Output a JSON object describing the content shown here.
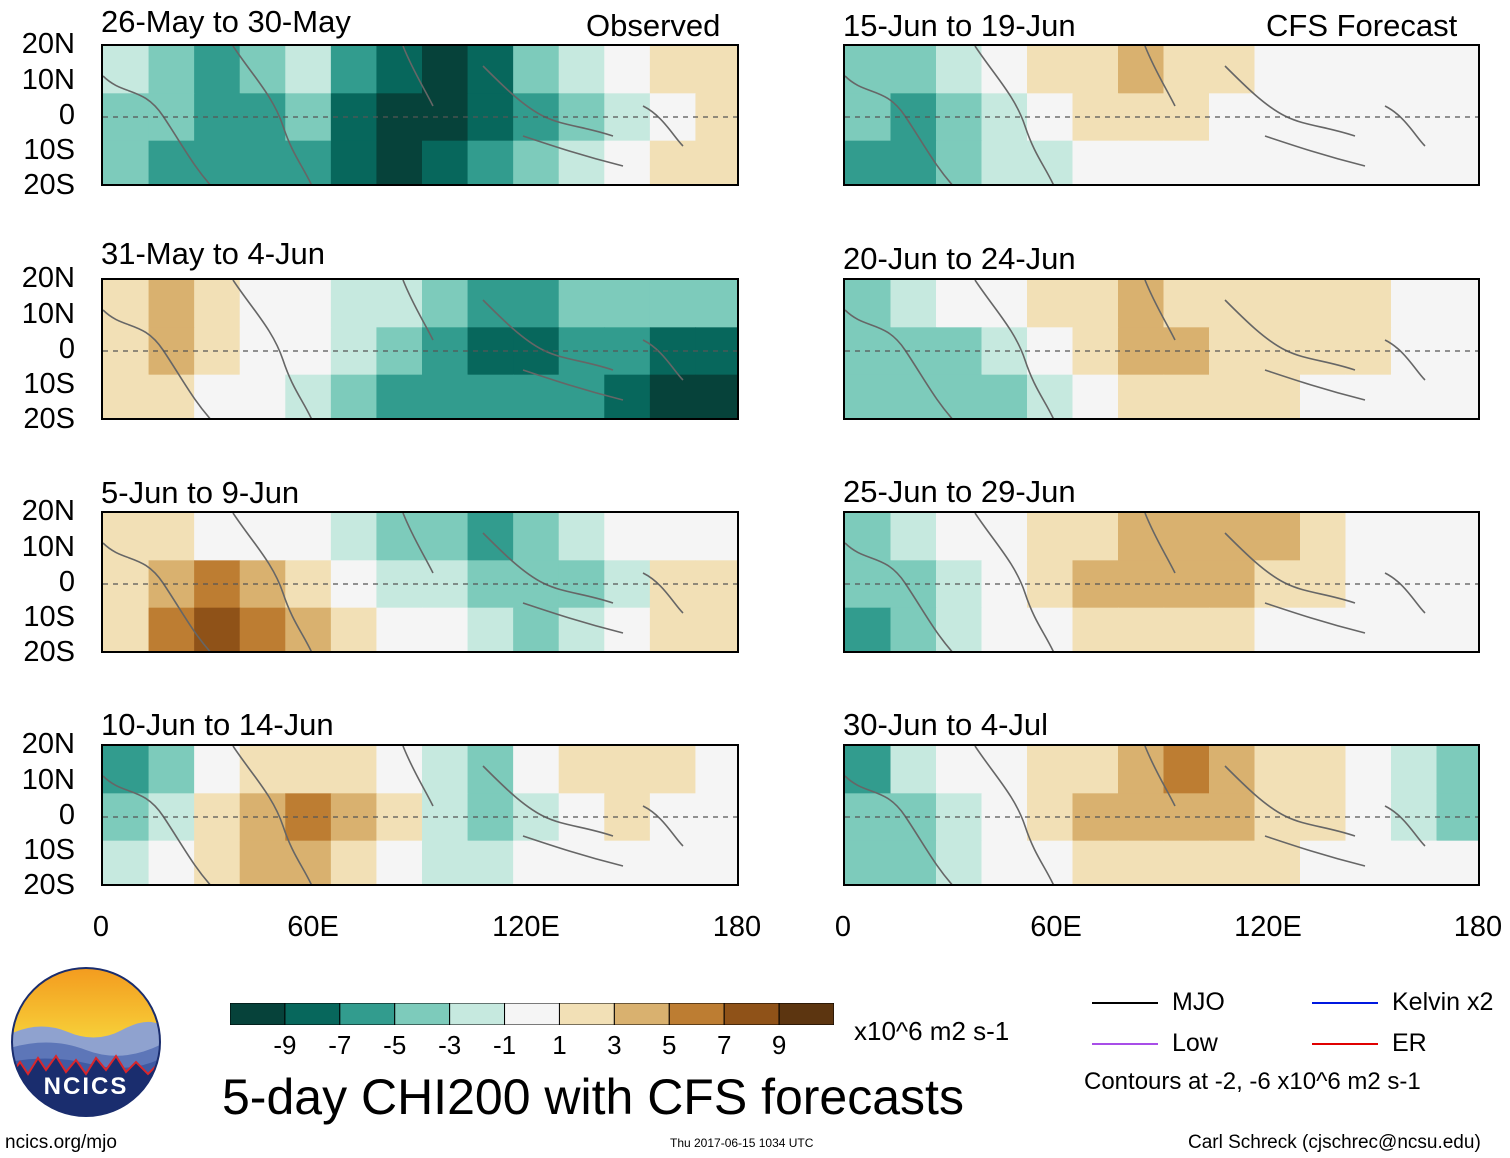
{
  "chart_data": {
    "type": "heatmap",
    "title": "5-day CHI200 with CFS forecasts",
    "variable": "CHI200 (200-hPa velocity potential)",
    "units": "x10^6 m2 s-1",
    "x_axis": {
      "ticks": [
        "0",
        "60E",
        "120E",
        "180"
      ],
      "range": [
        0,
        180
      ]
    },
    "y_axis": {
      "ticks": [
        "20N",
        "10N",
        "0",
        "10S",
        "20S"
      ],
      "range": [
        -20,
        20
      ]
    },
    "columns": [
      {
        "label": "Observed",
        "panels": [
          {
            "period": "26-May to 30-May",
            "field": [
              [
                -1,
                -3,
                -5,
                -3,
                -1,
                -5,
                -7,
                -9,
                -7,
                -3,
                -1,
                1,
                3,
                3
              ],
              [
                -3,
                -3,
                -5,
                -5,
                -3,
                -7,
                -9,
                -9,
                -7,
                -5,
                -3,
                -1,
                1,
                3
              ],
              [
                -3,
                -5,
                -5,
                -5,
                -5,
                -7,
                -9,
                -7,
                -5,
                -3,
                -1,
                1,
                3,
                3
              ]
            ]
          },
          {
            "period": "31-May to 4-Jun",
            "field": [
              [
                3,
                5,
                3,
                1,
                1,
                -1,
                -1,
                -3,
                -5,
                -5,
                -3,
                -3,
                -3,
                -3
              ],
              [
                3,
                5,
                3,
                1,
                1,
                -1,
                -3,
                -5,
                -7,
                -7,
                -5,
                -5,
                -7,
                -7
              ],
              [
                3,
                3,
                1,
                1,
                -1,
                -3,
                -5,
                -5,
                -5,
                -5,
                -5,
                -7,
                -9,
                -9
              ]
            ]
          },
          {
            "period": "5-Jun to 9-Jun",
            "field": [
              [
                3,
                3,
                1,
                1,
                1,
                -1,
                -3,
                -3,
                -5,
                -3,
                -1,
                1,
                1,
                1
              ],
              [
                3,
                5,
                7,
                5,
                3,
                1,
                -1,
                -1,
                -3,
                -3,
                -3,
                -1,
                3,
                3
              ],
              [
                3,
                7,
                9,
                7,
                5,
                3,
                1,
                1,
                -1,
                -3,
                -1,
                1,
                3,
                3
              ]
            ]
          },
          {
            "period": "10-Jun to 14-Jun",
            "field": [
              [
                -5,
                -3,
                1,
                3,
                3,
                3,
                1,
                -1,
                -3,
                1,
                3,
                3,
                3,
                1
              ],
              [
                -3,
                -1,
                3,
                5,
                7,
                5,
                3,
                -1,
                -3,
                -1,
                1,
                3,
                1,
                1
              ],
              [
                -1,
                1,
                3,
                5,
                5,
                3,
                1,
                -1,
                -1,
                1,
                1,
                1,
                1,
                1
              ]
            ]
          }
        ]
      },
      {
        "label": "CFS Forecast",
        "panels": [
          {
            "period": "15-Jun to 19-Jun",
            "field": [
              [
                -3,
                -3,
                -1,
                1,
                3,
                3,
                5,
                3,
                3,
                1,
                1,
                1,
                1,
                1
              ],
              [
                -3,
                -5,
                -3,
                -1,
                1,
                3,
                3,
                3,
                1,
                1,
                1,
                1,
                1,
                1
              ],
              [
                -5,
                -5,
                -3,
                -1,
                -1,
                1,
                1,
                1,
                1,
                1,
                1,
                1,
                1,
                1
              ]
            ]
          },
          {
            "period": "20-Jun to 24-Jun",
            "field": [
              [
                -3,
                -1,
                1,
                1,
                3,
                3,
                5,
                3,
                3,
                3,
                3,
                3,
                1,
                1
              ],
              [
                -3,
                -3,
                -3,
                -1,
                1,
                3,
                5,
                5,
                3,
                3,
                3,
                3,
                1,
                1
              ],
              [
                -3,
                -3,
                -3,
                -3,
                -1,
                1,
                3,
                3,
                3,
                3,
                1,
                1,
                1,
                1
              ]
            ]
          },
          {
            "period": "25-Jun to 29-Jun",
            "field": [
              [
                -3,
                -1,
                1,
                1,
                3,
                3,
                5,
                5,
                5,
                5,
                3,
                1,
                1,
                1
              ],
              [
                -3,
                -3,
                -1,
                1,
                3,
                5,
                5,
                5,
                5,
                3,
                3,
                1,
                1,
                1
              ],
              [
                -5,
                -3,
                -1,
                1,
                1,
                3,
                3,
                3,
                3,
                1,
                1,
                1,
                1,
                1
              ]
            ]
          },
          {
            "period": "30-Jun to 4-Jul",
            "field": [
              [
                -5,
                -1,
                1,
                1,
                3,
                3,
                5,
                7,
                5,
                3,
                3,
                1,
                -1,
                -3
              ],
              [
                -3,
                -3,
                -1,
                1,
                3,
                5,
                5,
                5,
                5,
                3,
                3,
                1,
                -1,
                -3
              ],
              [
                -3,
                -3,
                -1,
                1,
                1,
                3,
                3,
                3,
                3,
                3,
                1,
                1,
                1,
                1
              ]
            ]
          }
        ]
      }
    ],
    "colorbar": {
      "labels": [
        "-9",
        "-7",
        "-5",
        "-3",
        "-1",
        "1",
        "3",
        "5",
        "7",
        "9"
      ],
      "units": "x10^6 m2 s-1",
      "colors": [
        "#06423a",
        "#07675c",
        "#329c8e",
        "#7dcbbb",
        "#c6e9df",
        "#f5f5f5",
        "#f2e0b6",
        "#d9b16f",
        "#bd7d32",
        "#8f5218",
        "#5c3510"
      ]
    },
    "legend": [
      {
        "name": "MJO",
        "color": "#000000"
      },
      {
        "name": "Kelvin x2",
        "color": "#0018e0"
      },
      {
        "name": "Low",
        "color": "#a84ee8"
      },
      {
        "name": "ER",
        "color": "#e00000"
      }
    ],
    "legend_note": "Contours at -2, -6 x10^6 m2 s-1"
  },
  "logo": {
    "text": "NCICS"
  },
  "footer": {
    "left": "ncics.org/mjo",
    "center": "Thu 2017-06-15 1034 UTC",
    "right": "Carl Schreck (cjschrec@ncsu.edu)"
  }
}
